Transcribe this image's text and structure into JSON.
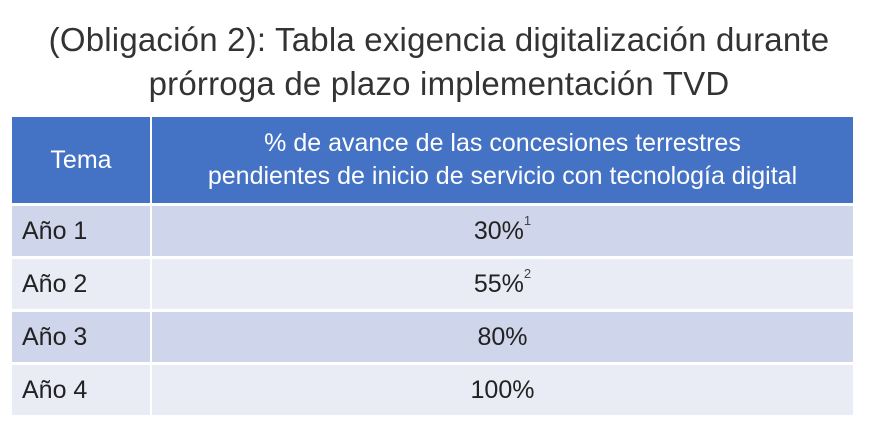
{
  "title": {
    "line1": "(Obligación 2): Tabla exigencia digitalización durante",
    "line2": "prórroga de plazo implementación TVD"
  },
  "table": {
    "headers": {
      "col1": "Tema",
      "col2_line1": "% de avance de las concesiones terrestres",
      "col2_line2": "pendientes de inicio de servicio con tecnología digital"
    },
    "rows": [
      {
        "tema": "Año 1",
        "value": "30%",
        "note": "1"
      },
      {
        "tema": "Año 2",
        "value": "55%",
        "note": "2"
      },
      {
        "tema": "Año 3",
        "value": "80%",
        "note": ""
      },
      {
        "tema": "Año 4",
        "value": "100%",
        "note": ""
      }
    ]
  },
  "colors": {
    "header_bg": "#4472c4",
    "row_dark": "#cfd5ea",
    "row_light": "#e9ebf5"
  }
}
